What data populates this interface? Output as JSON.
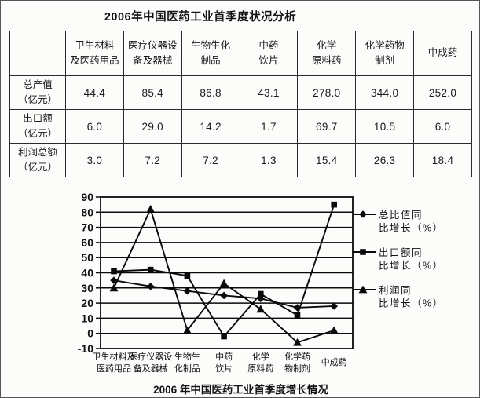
{
  "page_title": "2006年中国医药工业首季度状况分析",
  "table": {
    "col_headers": [
      "卫生材料\n及医药用品",
      "医疗仪器设\n备及器械",
      "生物生化\n制品",
      "中药\n饮片",
      "化学\n原料药",
      "化学药物\n制剂",
      "中成药"
    ],
    "rows": [
      {
        "label": "总产值\n（亿元）",
        "values": [
          "44.4",
          "85.4",
          "86.8",
          "43.1",
          "278.0",
          "344.0",
          "252.0"
        ]
      },
      {
        "label": "出口额\n（亿元）",
        "values": [
          "6.0",
          "29.0",
          "14.2",
          "1.7",
          "69.7",
          "10.5",
          "6.0"
        ]
      },
      {
        "label": "利润总额\n（亿元）",
        "values": [
          "3.0",
          "7.2",
          "7.2",
          "1.3",
          "15.4",
          "26.3",
          "18.4"
        ]
      }
    ]
  },
  "chart_data": {
    "type": "line",
    "title": "2006 年中国医药工业首季度增长情况",
    "caption": "2006 年中国医药工业首季度增长情况",
    "categories": [
      "卫生材料及医药用品",
      "医疗仪器设备及器械",
      "生物生化制品",
      "中药饮片",
      "化学原料药",
      "化学药物制剂",
      "中成药"
    ],
    "category_label_lines": [
      [
        "卫生材料及",
        "医药用品"
      ],
      [
        "医疗仪器设",
        "备及器械"
      ],
      [
        "生物生",
        "化制品"
      ],
      [
        "中药",
        "饮片"
      ],
      [
        "化学",
        "原料药"
      ],
      [
        "化学药",
        "物制剂"
      ],
      [
        "中成药"
      ]
    ],
    "series": [
      {
        "name": "总比值同比增长（%）",
        "legend_lines": [
          "总比值同",
          "比增长（%）"
        ],
        "marker": "diamond",
        "values": [
          35,
          31,
          28,
          25,
          23,
          17,
          18
        ]
      },
      {
        "name": "出口额同比增长（%）",
        "legend_lines": [
          "出口额同",
          "比增长（%）"
        ],
        "marker": "square",
        "values": [
          41,
          42,
          38,
          -2,
          26,
          12,
          85
        ]
      },
      {
        "name": "利润同比增长（%）",
        "legend_lines": [
          "利润同",
          "比增长（%）"
        ],
        "marker": "triangle",
        "values": [
          30,
          82,
          2,
          33,
          16,
          -6,
          2
        ]
      }
    ],
    "ylim": [
      -10,
      90
    ],
    "yticks": [
      90,
      80,
      70,
      60,
      50,
      40,
      30,
      20,
      10,
      0,
      -10
    ],
    "ytick_step": 10,
    "grid": "horizontal",
    "legend_position": "right",
    "line_color": "#0a0a0a"
  },
  "colors": {
    "ink": "#1a1a1a",
    "chart_line": "#0a0a0a",
    "table_border": "#2a2a2a",
    "background": "#fcfcfa"
  }
}
